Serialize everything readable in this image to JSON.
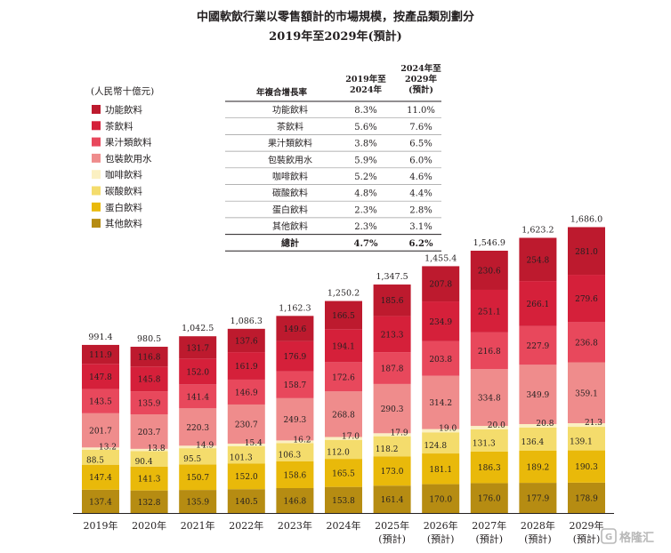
{
  "chart_data": {
    "type": "bar",
    "stacked": true,
    "title": "中國軟飲行業以零售額計的市場規模，按產品類別劃分",
    "subtitle": "2019年至2029年(預計)",
    "unit": "(人民幣十億元)",
    "categories": [
      "2019年",
      "2020年",
      "2021年",
      "2022年",
      "2023年",
      "2024年",
      "2025年",
      "2026年",
      "2027年",
      "2028年",
      "2029年"
    ],
    "category_notes": [
      "",
      "",
      "",
      "",
      "",
      "",
      "(預計)",
      "(預計)",
      "(預計)",
      "(預計)",
      "(預計)"
    ],
    "totals": [
      "991.4",
      "980.5",
      "1,042.5",
      "1,086.3",
      "1,162.3",
      "1,250.2",
      "1,347.5",
      "1,455.4",
      "1,546.9",
      "1,623.2",
      "1,686.0"
    ],
    "series": [
      {
        "name": "其他飲料",
        "color": "#b68c12",
        "values": [
          137.4,
          132.8,
          135.9,
          140.5,
          146.8,
          153.8,
          161.4,
          170.0,
          176.0,
          177.9,
          178.9
        ]
      },
      {
        "name": "蛋白飲料",
        "color": "#e9b90a",
        "values": [
          147.4,
          141.3,
          150.7,
          152.0,
          158.6,
          165.5,
          173.0,
          181.1,
          186.3,
          189.2,
          190.3
        ]
      },
      {
        "name": "碳酸飲料",
        "color": "#f4dc6c",
        "values": [
          88.5,
          90.4,
          95.5,
          101.3,
          106.3,
          112.0,
          118.2,
          124.8,
          131.3,
          136.4,
          139.1
        ]
      },
      {
        "name": "咖啡飲料",
        "color": "#fbf0c2",
        "values": [
          13.2,
          13.8,
          14.9,
          15.4,
          16.2,
          17.0,
          17.9,
          19.0,
          20.0,
          20.8,
          21.3
        ]
      },
      {
        "name": "包裝飲用水",
        "color": "#ef8c8c",
        "values": [
          201.7,
          203.7,
          220.3,
          230.7,
          249.3,
          268.8,
          290.3,
          314.2,
          334.8,
          349.9,
          359.1
        ]
      },
      {
        "name": "果汁類飲料",
        "color": "#e8485c",
        "values": [
          143.5,
          135.9,
          141.4,
          146.9,
          158.7,
          172.6,
          187.8,
          203.8,
          216.8,
          227.9,
          236.8
        ]
      },
      {
        "name": "茶飲料",
        "color": "#d5203a",
        "values": [
          147.8,
          145.8,
          152.0,
          161.9,
          176.9,
          194.1,
          213.3,
          234.9,
          251.1,
          266.1,
          279.6
        ]
      },
      {
        "name": "功能飲料",
        "color": "#bd1a2e",
        "values": [
          111.9,
          116.8,
          131.7,
          137.6,
          149.6,
          166.5,
          185.6,
          207.8,
          230.6,
          254.8,
          281.0
        ]
      }
    ],
    "legend_order": [
      "功能飲料",
      "茶飲料",
      "果汁類飲料",
      "包裝飲用水",
      "咖啡飲料",
      "碳酸飲料",
      "蛋白飲料",
      "其他飲料"
    ],
    "legend_placement": "top-left",
    "grid": false,
    "ylim": [
      0,
      1750
    ]
  },
  "cagr_table": {
    "header_label": "年複合增長率",
    "col1_header": [
      "2019年至",
      "2024年"
    ],
    "col2_header": [
      "2024年至",
      "2029年",
      "(預計)"
    ],
    "rows": [
      {
        "name": "功能飲料",
        "c1": "8.3%",
        "c2": "11.0%"
      },
      {
        "name": "茶飲料",
        "c1": "5.6%",
        "c2": "7.6%"
      },
      {
        "name": "果汁類飲料",
        "c1": "3.8%",
        "c2": "6.5%"
      },
      {
        "name": "包裝飲用水",
        "c1": "5.9%",
        "c2": "6.0%"
      },
      {
        "name": "咖啡飲料",
        "c1": "5.2%",
        "c2": "4.6%"
      },
      {
        "name": "碳酸飲料",
        "c1": "4.8%",
        "c2": "4.4%"
      },
      {
        "name": "蛋白飲料",
        "c1": "2.3%",
        "c2": "2.8%"
      },
      {
        "name": "其他飲料",
        "c1": "2.3%",
        "c2": "3.1%"
      }
    ],
    "total_row": {
      "name": "總計",
      "c1": "4.7%",
      "c2": "6.2%"
    }
  },
  "watermark": {
    "text": "格隆汇",
    "icon": "g-logo-icon"
  }
}
